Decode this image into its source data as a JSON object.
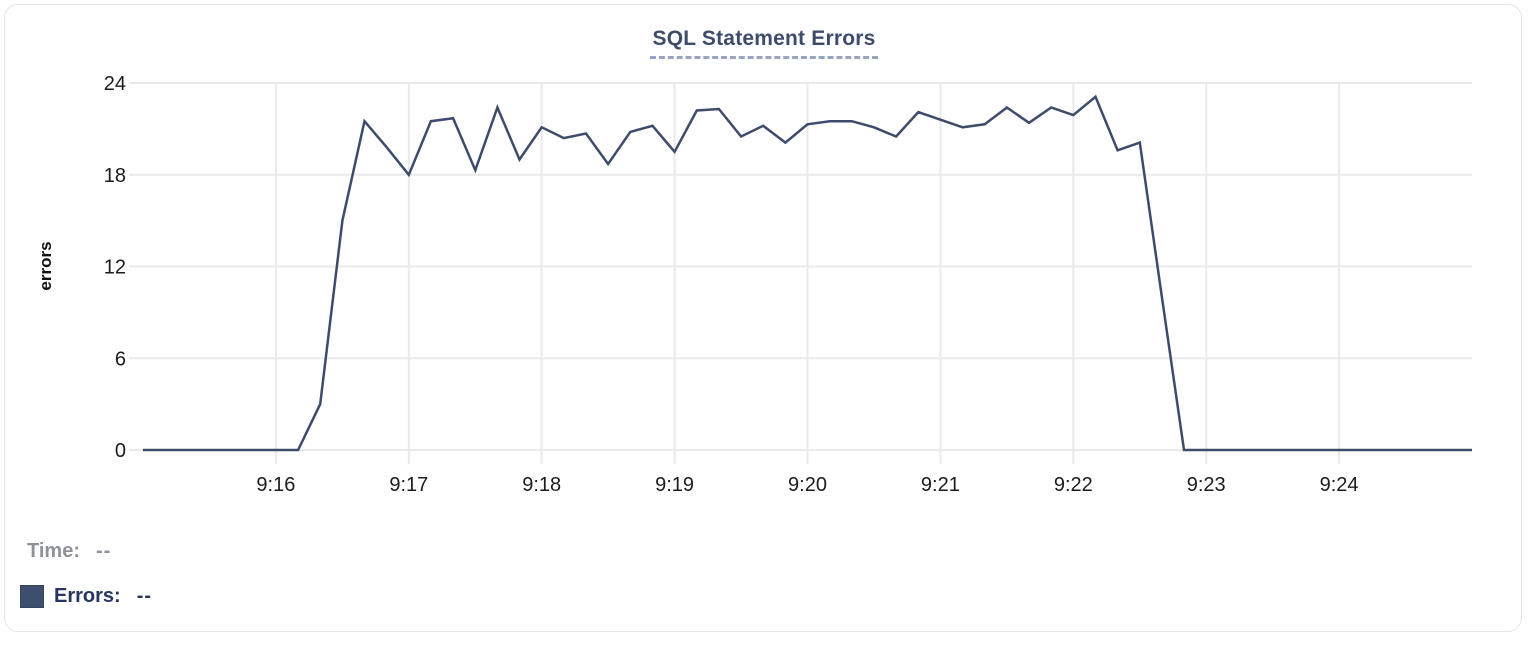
{
  "panel": {
    "background": "#ffffff",
    "border_color": "#e3e5e8"
  },
  "legend": {
    "time_label": "Time:",
    "time_value": "--",
    "errors_label": "Errors:",
    "errors_value": "--"
  },
  "colors": {
    "series_line": "#3e4c6b",
    "title_text": "#3e4c6b",
    "title_underline": "#9aa4c0",
    "grid": "#eaeaec",
    "axis_text": "#1c1c1e",
    "legend_muted": "#8f9298",
    "legend_accent": "#26365e",
    "swatch": "#3e4e6e"
  },
  "chart_data": {
    "type": "line",
    "title": "SQL Statement Errors",
    "xlabel": "",
    "ylabel": "errors",
    "grid": true,
    "legend_position": "bottom-left",
    "ylim": [
      0,
      24
    ],
    "y_ticks": [
      0,
      6,
      12,
      18,
      24
    ],
    "x_tick_labels": [
      "9:16",
      "9:17",
      "9:18",
      "9:19",
      "9:20",
      "9:21",
      "9:22",
      "9:23",
      "9:24"
    ],
    "x_tick_seconds": [
      60,
      120,
      180,
      240,
      300,
      360,
      420,
      480,
      540
    ],
    "x_domain_seconds": [
      0,
      600
    ],
    "x_start_time": "9:15:00",
    "x_end_time": "9:25:00",
    "sample_interval_seconds": 10,
    "series": [
      {
        "name": "Errors",
        "color": "#3e4c6b",
        "times": [
          "9:15:00",
          "9:15:10",
          "9:15:20",
          "9:15:30",
          "9:15:40",
          "9:15:50",
          "9:16:00",
          "9:16:10",
          "9:16:20",
          "9:16:30",
          "9:16:40",
          "9:16:50",
          "9:17:00",
          "9:17:10",
          "9:17:20",
          "9:17:30",
          "9:17:40",
          "9:17:50",
          "9:18:00",
          "9:18:10",
          "9:18:20",
          "9:18:30",
          "9:18:40",
          "9:18:50",
          "9:19:00",
          "9:19:10",
          "9:19:20",
          "9:19:30",
          "9:19:40",
          "9:19:50",
          "9:20:00",
          "9:20:10",
          "9:20:20",
          "9:20:30",
          "9:20:40",
          "9:20:50",
          "9:21:00",
          "9:21:10",
          "9:21:20",
          "9:21:30",
          "9:21:40",
          "9:21:50",
          "9:22:00",
          "9:22:10",
          "9:22:20",
          "9:22:30",
          "9:22:40",
          "9:22:50",
          "9:23:00",
          "9:23:10",
          "9:23:20",
          "9:23:30",
          "9:23:40",
          "9:23:50",
          "9:24:00",
          "9:24:10",
          "9:24:20",
          "9:24:30",
          "9:24:40",
          "9:24:50",
          "9:25:00"
        ],
        "x_seconds": [
          0,
          10,
          20,
          30,
          40,
          50,
          60,
          70,
          80,
          90,
          100,
          110,
          120,
          130,
          140,
          150,
          160,
          170,
          180,
          190,
          200,
          210,
          220,
          230,
          240,
          250,
          260,
          270,
          280,
          290,
          300,
          310,
          320,
          330,
          340,
          350,
          360,
          370,
          380,
          390,
          400,
          410,
          420,
          430,
          440,
          450,
          460,
          470,
          480,
          490,
          500,
          510,
          520,
          530,
          540,
          550,
          560,
          570,
          580,
          590,
          600
        ],
        "values": [
          0,
          0,
          0,
          0,
          0,
          0,
          0,
          0,
          3,
          15,
          21.5,
          19.8,
          18,
          21.5,
          21.7,
          18.3,
          22.4,
          19,
          21.1,
          20.4,
          20.7,
          18.7,
          20.8,
          21.2,
          19.5,
          22.2,
          22.3,
          20.5,
          21.2,
          20.1,
          21.3,
          21.5,
          21.5,
          21.1,
          20.5,
          22.1,
          21.6,
          21.1,
          21.3,
          22.4,
          21.4,
          22.4,
          21.9,
          23.1,
          19.6,
          20.1,
          10,
          0,
          0,
          0,
          0,
          0,
          0,
          0,
          0,
          0,
          0,
          0,
          0,
          0,
          0
        ]
      }
    ]
  }
}
